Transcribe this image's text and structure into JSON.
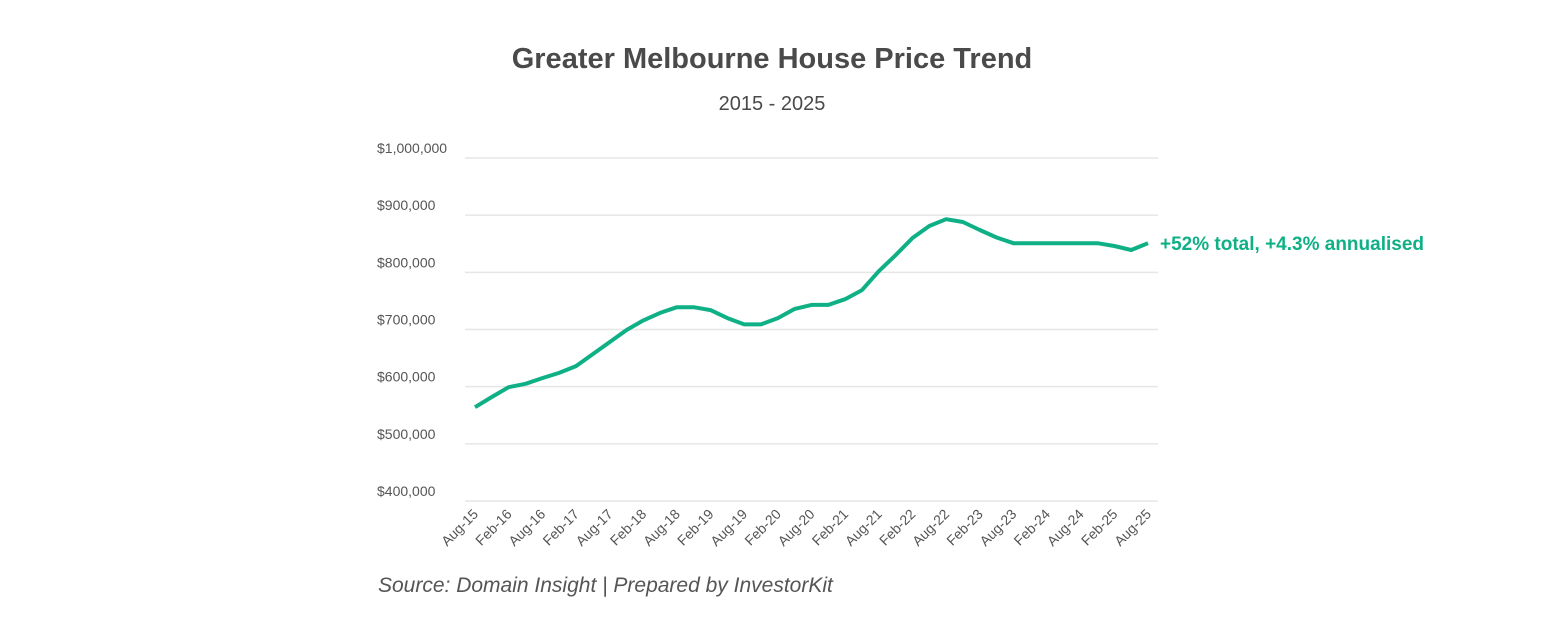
{
  "chart_data": {
    "type": "line",
    "title": "Greater Melbourne House Price Trend",
    "subtitle": "2015 - 2025",
    "xlabel": "",
    "ylabel": "",
    "ylim": [
      400000,
      1000000
    ],
    "y_ticks": [
      "$400,000",
      "$500,000",
      "$600,000",
      "$700,000",
      "$800,000",
      "$900,000",
      "$1,000,000"
    ],
    "y_tick_values": [
      400000,
      500000,
      600000,
      700000,
      800000,
      900000,
      1000000
    ],
    "x_ticks": [
      "Aug-15",
      "Feb-16",
      "Aug-16",
      "Feb-17",
      "Aug-17",
      "Feb-18",
      "Aug-18",
      "Feb-19",
      "Aug-19",
      "Feb-20",
      "Aug-20",
      "Feb-21",
      "Aug-21",
      "Feb-22",
      "Aug-22",
      "Feb-23",
      "Aug-23",
      "Feb-24",
      "Aug-24",
      "Feb-25",
      "Aug-25"
    ],
    "grid": "horizontal",
    "line_color": "#10b086",
    "series": [
      {
        "x": [
          "Aug-15",
          "Nov-15",
          "Feb-16",
          "May-16",
          "Aug-16",
          "Nov-16",
          "Feb-17",
          "May-17",
          "Aug-17",
          "Nov-17",
          "Feb-18",
          "May-18",
          "Aug-18",
          "Nov-18",
          "Feb-19",
          "May-19",
          "Aug-19",
          "Nov-19",
          "Feb-20",
          "May-20",
          "Aug-20",
          "Nov-20",
          "Feb-21",
          "May-21",
          "Aug-21",
          "Nov-21",
          "Feb-22",
          "May-22",
          "Aug-22",
          "Nov-22",
          "Feb-23",
          "May-23",
          "Aug-23",
          "Nov-23",
          "Feb-24",
          "May-24",
          "Aug-24",
          "Nov-24",
          "Feb-25",
          "May-25",
          "Aug-25"
        ],
        "values": [
          564000,
          582000,
          599000,
          605000,
          615000,
          624000,
          636000,
          657000,
          678000,
          699000,
          716000,
          729000,
          739000,
          739000,
          734000,
          720000,
          709000,
          709000,
          720000,
          736000,
          743000,
          743000,
          753000,
          769000,
          802000,
          830000,
          860000,
          881000,
          893000,
          888000,
          874000,
          861000,
          851000,
          851000,
          851000,
          851000,
          851000,
          851000,
          846000,
          839000,
          851000
        ]
      }
    ],
    "annotation": "+52% total, +4.3% annualised",
    "source": "Source: Domain Insight | Prepared by InvestorKit"
  }
}
